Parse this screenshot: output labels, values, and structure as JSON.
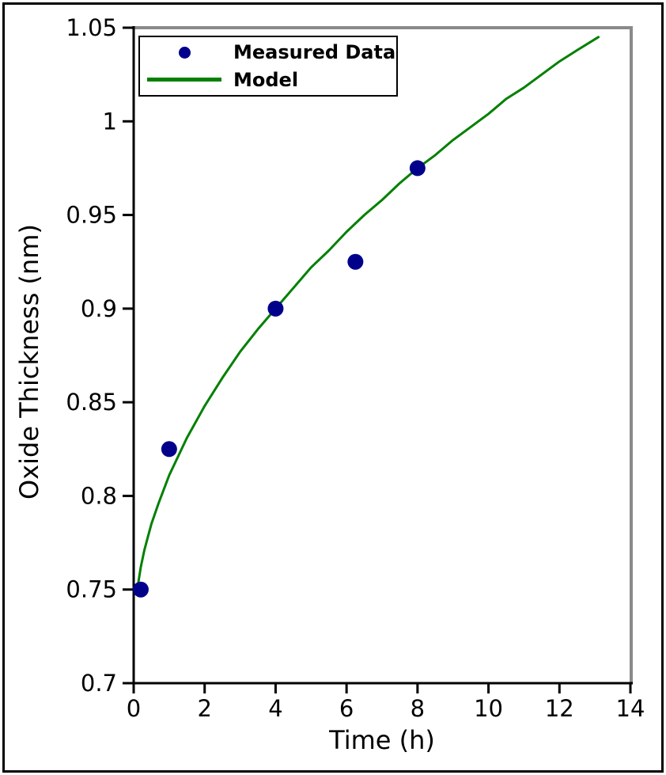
{
  "figure": {
    "background": "#ffffff",
    "border_color": "#000000"
  },
  "chart_data": {
    "type": "scatter",
    "title": "",
    "xlabel": "Time (h)",
    "ylabel": "Oxide Thickness (nm)",
    "xlim": [
      0,
      14
    ],
    "ylim": [
      0.7,
      1.05
    ],
    "xticks": [
      0,
      2,
      4,
      6,
      8,
      10,
      12,
      14
    ],
    "xtick_labels": [
      "0",
      "2",
      "4",
      "6",
      "8",
      "10",
      "12",
      "14"
    ],
    "yticks": [
      0.7,
      0.75,
      0.8,
      0.85,
      0.9,
      0.95,
      1.0,
      1.05
    ],
    "ytick_labels": [
      "0.7",
      "0.75",
      "0.8",
      "0.85",
      "0.9",
      "0.95",
      "1",
      "1.05"
    ],
    "grid": false,
    "axis_colors": {
      "left_bottom_spine": "#000000",
      "top_right_spine": "#8a8a8a"
    },
    "legend": {
      "position": "upper left",
      "entries": [
        {
          "label": "Measured Data",
          "marker": "circle",
          "color": "#00008B"
        },
        {
          "label": "Model",
          "marker": "line",
          "color": "#008000"
        }
      ]
    },
    "series": [
      {
        "name": "Measured Data",
        "type": "scatter",
        "color": "#00008B",
        "marker_radius_px": 10,
        "points": [
          [
            0.2,
            0.75
          ],
          [
            1,
            0.825
          ],
          [
            4,
            0.9
          ],
          [
            6.25,
            0.925
          ],
          [
            8,
            0.975
          ]
        ]
      },
      {
        "name": "Model",
        "type": "line",
        "color": "#008000",
        "x": [
          0.1,
          0.2,
          0.3,
          0.4,
          0.5,
          0.7,
          1,
          1.5,
          2,
          2.5,
          3,
          3.5,
          4,
          4.5,
          5,
          5.5,
          6,
          6.5,
          7,
          7.5,
          8,
          8.5,
          9,
          9.5,
          10,
          10.5,
          11,
          11.5,
          12,
          12.5,
          13.1
        ],
        "y": [
          0.75,
          0.762,
          0.771,
          0.778,
          0.785,
          0.796,
          0.811,
          0.831,
          0.848,
          0.863,
          0.877,
          0.889,
          0.9,
          0.911,
          0.922,
          0.931,
          0.941,
          0.95,
          0.958,
          0.967,
          0.975,
          0.982,
          0.99,
          0.997,
          1.004,
          1.012,
          1.018,
          1.025,
          1.032,
          1.038,
          1.045
        ]
      }
    ]
  }
}
